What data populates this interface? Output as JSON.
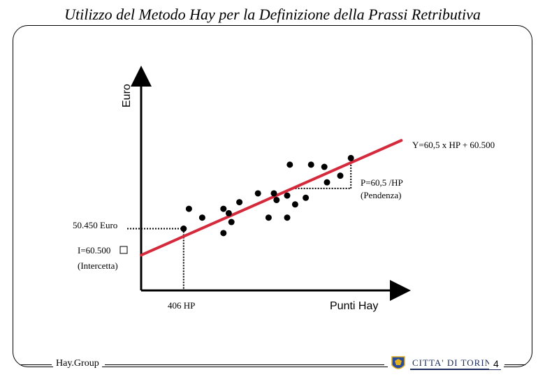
{
  "slide": {
    "title": "Utilizzo del Metodo Hay per la Definizione della Prassi Retributiva",
    "footer_left": "Hay.Group",
    "footer_right": "CITTA' DI TORINO",
    "page_number": "4"
  },
  "colors": {
    "regression_line": "#d42a3c",
    "points": "#000000",
    "crest_blue": "#2a4a9a",
    "crest_gold": "#e0b020"
  },
  "chart_data": {
    "type": "scatter",
    "title": "",
    "xlabel": "Punti Hay",
    "ylabel": "Euro",
    "x_range": [
      0,
      100
    ],
    "y_range": [
      0,
      100
    ],
    "points": [
      {
        "x": 18,
        "y": 37
      },
      {
        "x": 23,
        "y": 33
      },
      {
        "x": 31,
        "y": 37
      },
      {
        "x": 33,
        "y": 35
      },
      {
        "x": 34,
        "y": 31
      },
      {
        "x": 31,
        "y": 26
      },
      {
        "x": 37,
        "y": 40
      },
      {
        "x": 44,
        "y": 44
      },
      {
        "x": 48,
        "y": 33
      },
      {
        "x": 51,
        "y": 41
      },
      {
        "x": 50,
        "y": 44
      },
      {
        "x": 55,
        "y": 43
      },
      {
        "x": 55,
        "y": 33
      },
      {
        "x": 58,
        "y": 39
      },
      {
        "x": 62,
        "y": 42
      },
      {
        "x": 56,
        "y": 57
      },
      {
        "x": 64,
        "y": 57
      },
      {
        "x": 69,
        "y": 56
      },
      {
        "x": 70,
        "y": 49
      },
      {
        "x": 75,
        "y": 52
      },
      {
        "x": 79,
        "y": 60
      },
      {
        "x": 16,
        "y": 28
      }
    ],
    "regression": {
      "x0": 0,
      "y0": 16,
      "x1": 98,
      "y1": 68
    },
    "regression_label": "Y=60,5 x HP + 60.500",
    "slope_label_line1": "P=60,5 /HP",
    "slope_label_line2": "(Pendenza)",
    "intercept_label_line1": "I=60.500",
    "intercept_label_line2": "(Intercetta)",
    "y_marker_label": "50.450 Euro",
    "x_marker_label": "406 HP",
    "marker_point": {
      "x": 16,
      "y": 28
    },
    "slope_triangle": {
      "x0": 57,
      "x1": 79
    }
  }
}
